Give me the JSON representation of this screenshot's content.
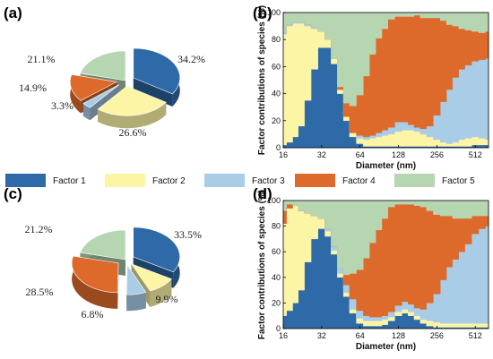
{
  "factor_colors": [
    "#2f6aa8",
    "#fdf5a6",
    "#a9cce7",
    "#dd6a2a",
    "#b6d6b2"
  ],
  "legend": [
    "Factor 1",
    "Factor 2",
    "Factor 3",
    "Factor 4",
    "Factor 5"
  ],
  "chart_data": [
    {
      "type": "pie",
      "panel": "(a)",
      "categories": [
        "Factor 1",
        "Factor 2",
        "Factor 3",
        "Factor 4",
        "Factor 5"
      ],
      "labels": [
        "34.2%",
        "26.6%",
        "3.3%",
        "14.9%",
        "21.1%"
      ],
      "values": [
        34.2,
        26.6,
        3.3,
        14.9,
        21.1
      ],
      "exploded": [
        "Factor 1",
        "Factor 2",
        "Factor 3",
        "Factor 4"
      ]
    },
    {
      "type": "area",
      "panel": "(b)",
      "stacked": true,
      "ylabel": "Factor contributions of species (%)",
      "xlabel": "Diameter (nm)",
      "xscale": "log2",
      "xlim": [
        16,
        650
      ],
      "ylim": [
        0,
        100
      ],
      "xticks": [
        16,
        32,
        64,
        128,
        256,
        512
      ],
      "yticks": [
        0,
        20,
        40,
        60,
        80,
        100
      ],
      "x": [
        16,
        18,
        20,
        22,
        25,
        28,
        32,
        36,
        40,
        45,
        50,
        56,
        64,
        72,
        80,
        90,
        100,
        112,
        128,
        145,
        160,
        180,
        200,
        225,
        256,
        290,
        320,
        360,
        400,
        450,
        512,
        580,
        650
      ],
      "series": [
        {
          "name": "Factor 1",
          "values": [
            2,
            4,
            8,
            16,
            35,
            58,
            74,
            74,
            62,
            40,
            20,
            8,
            3,
            1,
            1,
            1,
            1,
            1,
            1,
            1,
            1,
            1,
            1,
            1,
            1,
            1,
            1,
            1,
            1,
            1,
            2,
            2,
            2
          ]
        },
        {
          "name": "Factor 2",
          "values": [
            82,
            86,
            84,
            76,
            55,
            30,
            12,
            6,
            4,
            3,
            3,
            3,
            4,
            5,
            6,
            7,
            8,
            9,
            11,
            12,
            12,
            11,
            9,
            7,
            5,
            3,
            2,
            3,
            5,
            6,
            6,
            5,
            4
          ]
        },
        {
          "name": "Factor 3",
          "values": [
            1,
            1,
            1,
            1,
            1,
            1,
            0,
            0,
            0,
            0,
            0,
            0,
            2,
            2,
            2,
            3,
            4,
            5,
            7,
            6,
            4,
            3,
            4,
            8,
            18,
            30,
            40,
            48,
            52,
            54,
            56,
            58,
            60
          ]
        },
        {
          "name": "Factor 4",
          "values": [
            0,
            0,
            0,
            0,
            0,
            0,
            0,
            0,
            0,
            2,
            10,
            20,
            30,
            45,
            60,
            70,
            75,
            80,
            78,
            78,
            80,
            83,
            82,
            80,
            72,
            60,
            48,
            38,
            30,
            26,
            22,
            20,
            20
          ]
        },
        {
          "name": "Factor 5",
          "values": [
            15,
            9,
            7,
            7,
            9,
            11,
            14,
            20,
            34,
            55,
            67,
            69,
            61,
            47,
            31,
            19,
            12,
            5,
            3,
            3,
            3,
            2,
            4,
            4,
            4,
            6,
            9,
            10,
            12,
            13,
            14,
            15,
            14
          ]
        }
      ]
    },
    {
      "type": "pie",
      "panel": "(c)",
      "categories": [
        "Factor 1",
        "Factor 2",
        "Factor 3",
        "Factor 4",
        "Factor 5"
      ],
      "labels": [
        "33.5%",
        "9.9%",
        "6.8%",
        "28.5%",
        "21.2%"
      ],
      "values": [
        33.5,
        9.9,
        6.8,
        28.5,
        21.2
      ],
      "exploded": [
        "Factor 1",
        "Factor 2",
        "Factor 3",
        "Factor 4"
      ]
    },
    {
      "type": "area",
      "panel": "(d)",
      "stacked": true,
      "ylabel": "Factor contributions of species (%)",
      "xlabel": "Diameter (nm)",
      "xscale": "log2",
      "xlim": [
        16,
        650
      ],
      "ylim": [
        0,
        100
      ],
      "xticks": [
        16,
        32,
        64,
        128,
        256,
        512
      ],
      "yticks": [
        0,
        20,
        40,
        60,
        80,
        100
      ],
      "x": [
        16,
        18,
        20,
        22,
        25,
        28,
        32,
        36,
        40,
        45,
        50,
        56,
        64,
        72,
        80,
        90,
        100,
        112,
        128,
        145,
        160,
        180,
        200,
        225,
        256,
        290,
        320,
        360,
        400,
        450,
        512,
        580,
        650
      ],
      "series": [
        {
          "name": "Factor 1",
          "values": [
            10,
            14,
            20,
            30,
            52,
            70,
            78,
            72,
            58,
            40,
            25,
            12,
            4,
            2,
            2,
            2,
            3,
            6,
            10,
            12,
            10,
            7,
            4,
            2,
            1,
            1,
            1,
            1,
            1,
            1,
            1,
            1,
            1
          ]
        },
        {
          "name": "Factor 2",
          "values": [
            72,
            80,
            76,
            62,
            38,
            18,
            8,
            4,
            3,
            3,
            3,
            3,
            4,
            4,
            4,
            4,
            4,
            3,
            3,
            3,
            3,
            3,
            3,
            4,
            4,
            3,
            3,
            3,
            3,
            3,
            3,
            3,
            3
          ]
        },
        {
          "name": "Factor 3",
          "values": [
            0,
            0,
            0,
            0,
            0,
            0,
            0,
            2,
            3,
            4,
            6,
            8,
            6,
            4,
            3,
            3,
            3,
            4,
            5,
            6,
            6,
            6,
            8,
            14,
            22,
            34,
            44,
            50,
            56,
            62,
            70,
            74,
            76
          ]
        },
        {
          "name": "Factor 4",
          "values": [
            10,
            3,
            0,
            0,
            0,
            0,
            0,
            0,
            0,
            0,
            8,
            20,
            32,
            45,
            58,
            68,
            76,
            82,
            79,
            76,
            78,
            80,
            80,
            72,
            62,
            50,
            40,
            32,
            26,
            20,
            14,
            10,
            8
          ]
        },
        {
          "name": "Factor 5",
          "values": [
            8,
            3,
            4,
            8,
            10,
            12,
            14,
            22,
            36,
            53,
            58,
            57,
            54,
            45,
            33,
            23,
            14,
            5,
            3,
            3,
            3,
            4,
            5,
            8,
            11,
            12,
            12,
            14,
            14,
            14,
            12,
            12,
            12
          ]
        }
      ]
    }
  ]
}
